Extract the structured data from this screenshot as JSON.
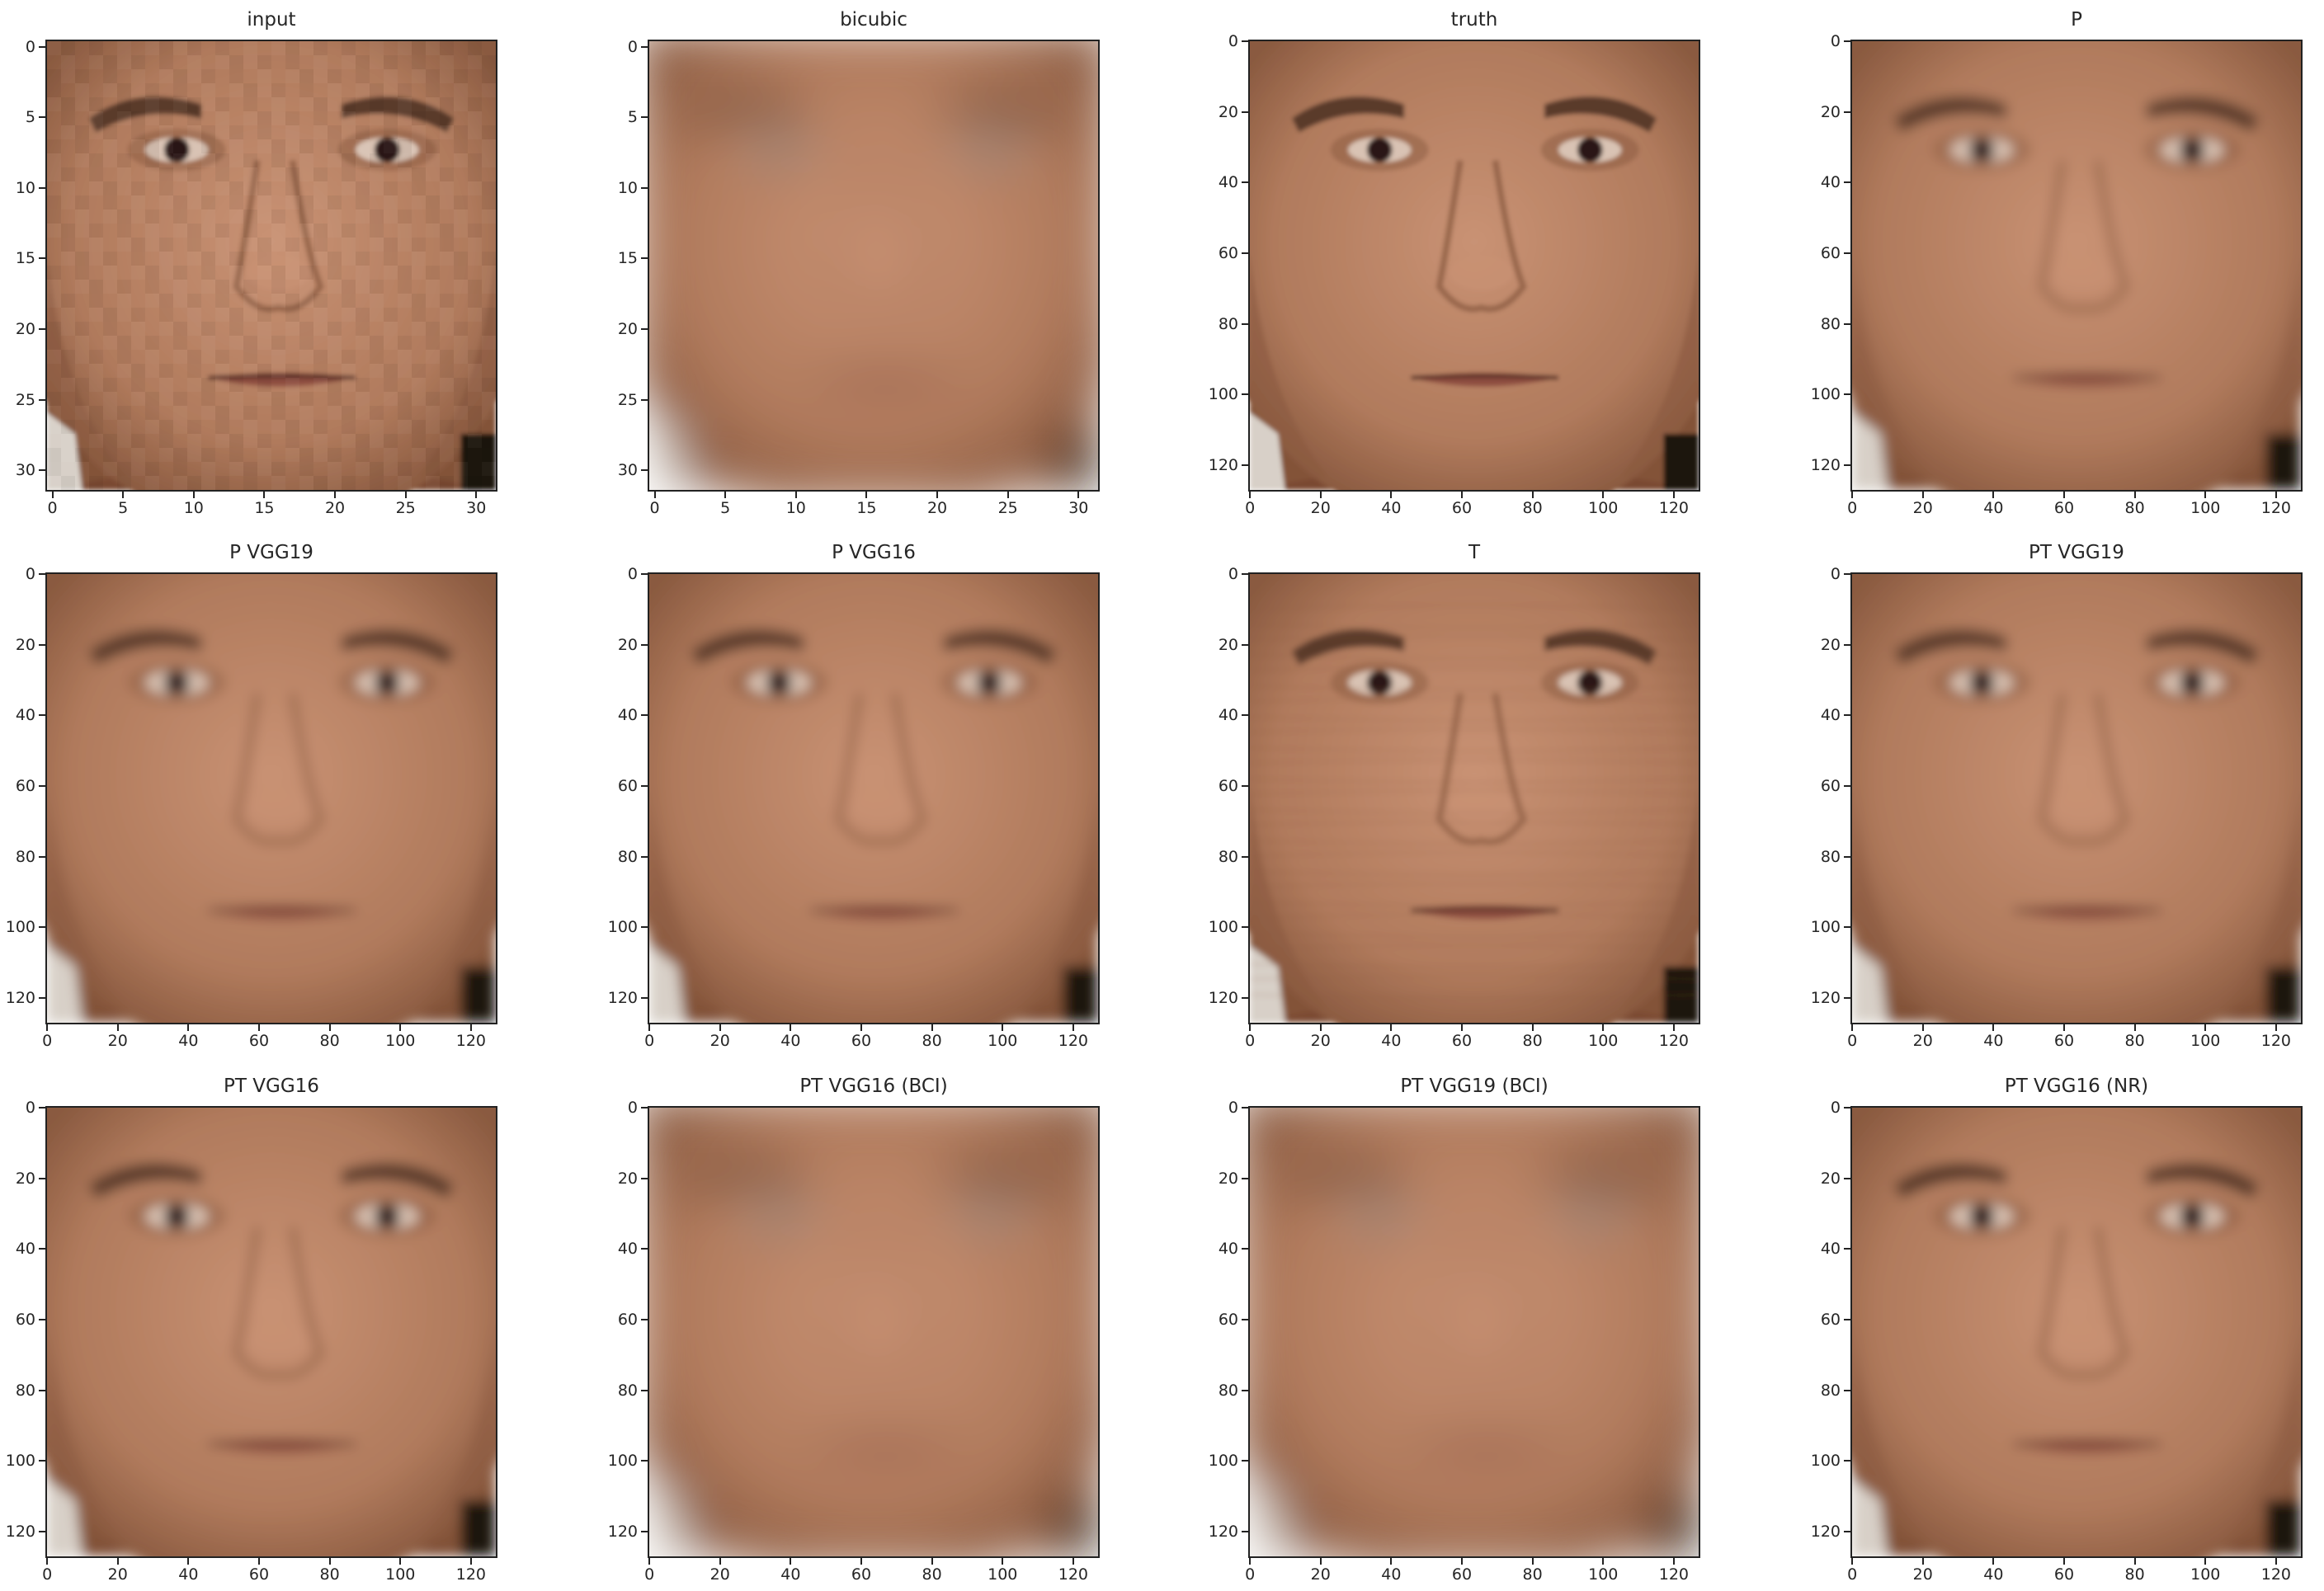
{
  "figure": {
    "panels": [
      {
        "title": "input",
        "max": 31,
        "ticks": [
          "0",
          "5",
          "10",
          "15",
          "20",
          "25",
          "30"
        ],
        "tick_values": [
          0,
          5,
          10,
          15,
          20,
          25,
          30
        ],
        "render": "pixelated",
        "face": "truth"
      },
      {
        "title": "bicubic",
        "max": 31,
        "ticks": [
          "0",
          "5",
          "10",
          "15",
          "20",
          "25",
          "30"
        ],
        "tick_values": [
          0,
          5,
          10,
          15,
          20,
          25,
          30
        ],
        "render": "blurry",
        "face": "truth"
      },
      {
        "title": "truth",
        "max": 127,
        "ticks": [
          "0",
          "20",
          "40",
          "60",
          "80",
          "100",
          "120"
        ],
        "tick_values": [
          0,
          20,
          40,
          60,
          80,
          100,
          120
        ],
        "render": "sharp",
        "face": "truth"
      },
      {
        "title": "P",
        "max": 127,
        "ticks": [
          "0",
          "20",
          "40",
          "60",
          "80",
          "100",
          "120"
        ],
        "tick_values": [
          0,
          20,
          40,
          60,
          80,
          100,
          120
        ],
        "render": "soft",
        "face": "recon"
      },
      {
        "title": "P VGG19",
        "max": 127,
        "ticks": [
          "0",
          "20",
          "40",
          "60",
          "80",
          "100",
          "120"
        ],
        "tick_values": [
          0,
          20,
          40,
          60,
          80,
          100,
          120
        ],
        "render": "soft",
        "face": "recon"
      },
      {
        "title": "P VGG16",
        "max": 127,
        "ticks": [
          "0",
          "20",
          "40",
          "60",
          "80",
          "100",
          "120"
        ],
        "tick_values": [
          0,
          20,
          40,
          60,
          80,
          100,
          120
        ],
        "render": "soft",
        "face": "recon"
      },
      {
        "title": "T",
        "max": 127,
        "ticks": [
          "0",
          "20",
          "40",
          "60",
          "80",
          "100",
          "120"
        ],
        "tick_values": [
          0,
          20,
          40,
          60,
          80,
          100,
          120
        ],
        "render": "textured",
        "face": "recon"
      },
      {
        "title": "PT VGG19",
        "max": 127,
        "ticks": [
          "0",
          "20",
          "40",
          "60",
          "80",
          "100",
          "120"
        ],
        "tick_values": [
          0,
          20,
          40,
          60,
          80,
          100,
          120
        ],
        "render": "soft",
        "face": "recon"
      },
      {
        "title": "PT VGG16",
        "max": 127,
        "ticks": [
          "0",
          "20",
          "40",
          "60",
          "80",
          "100",
          "120"
        ],
        "tick_values": [
          0,
          20,
          40,
          60,
          80,
          100,
          120
        ],
        "render": "soft",
        "face": "recon"
      },
      {
        "title": "PT VGG16 (BCI)",
        "max": 127,
        "ticks": [
          "0",
          "20",
          "40",
          "60",
          "80",
          "100",
          "120"
        ],
        "tick_values": [
          0,
          20,
          40,
          60,
          80,
          100,
          120
        ],
        "render": "blurry",
        "face": "recon"
      },
      {
        "title": "PT VGG19 (BCI)",
        "max": 127,
        "ticks": [
          "0",
          "20",
          "40",
          "60",
          "80",
          "100",
          "120"
        ],
        "tick_values": [
          0,
          20,
          40,
          60,
          80,
          100,
          120
        ],
        "render": "blurry",
        "face": "recon"
      },
      {
        "title": "PT VGG16 (NR)",
        "max": 127,
        "ticks": [
          "0",
          "20",
          "40",
          "60",
          "80",
          "100",
          "120"
        ],
        "tick_values": [
          0,
          20,
          40,
          60,
          80,
          100,
          120
        ],
        "render": "soft",
        "face": "recon"
      }
    ],
    "colors": {
      "skin": "#b07a5c",
      "skin_light": "#c99274",
      "skin_shadow": "#8a5a40",
      "background": "#7a4a32",
      "hair": "#5a3a2a",
      "eye": "#2a1812",
      "lip": "#8e4e40",
      "shirt_light": "#d8d0c8",
      "dark_corner": "#1e1410"
    }
  }
}
